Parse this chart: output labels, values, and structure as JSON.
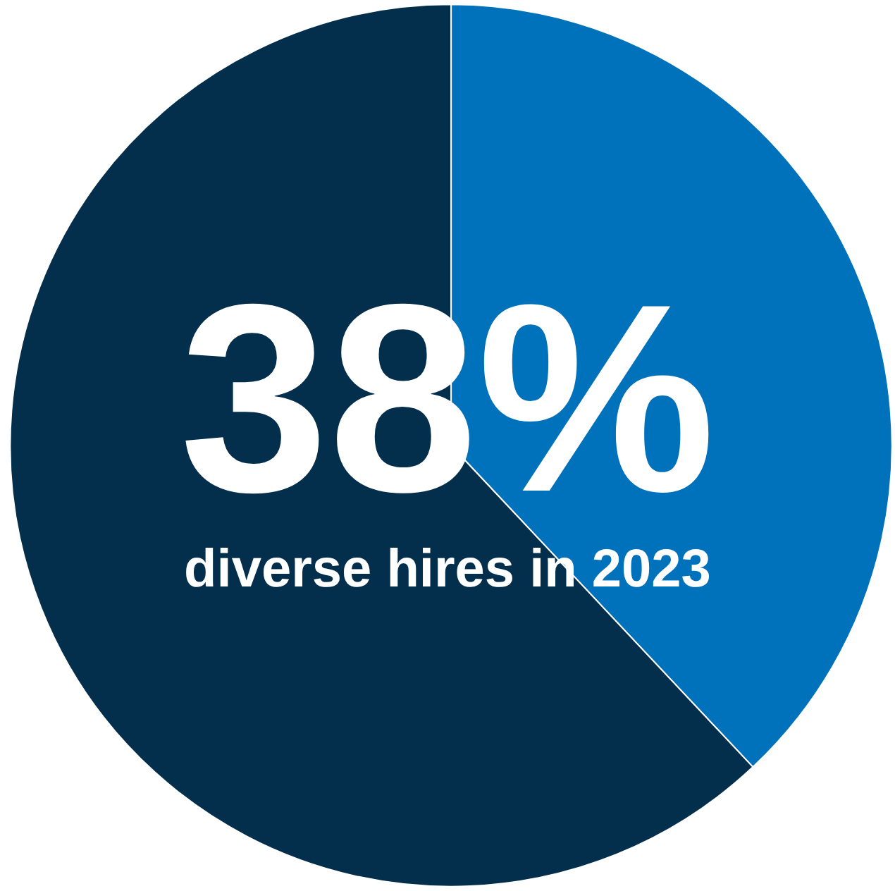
{
  "chart_data": {
    "type": "pie",
    "title": "38%",
    "subtitle": "diverse hires in 2023",
    "categories": [
      null,
      null
    ],
    "values": [
      38,
      62
    ],
    "colors": [
      "#0071bb",
      "#032f4c"
    ]
  }
}
